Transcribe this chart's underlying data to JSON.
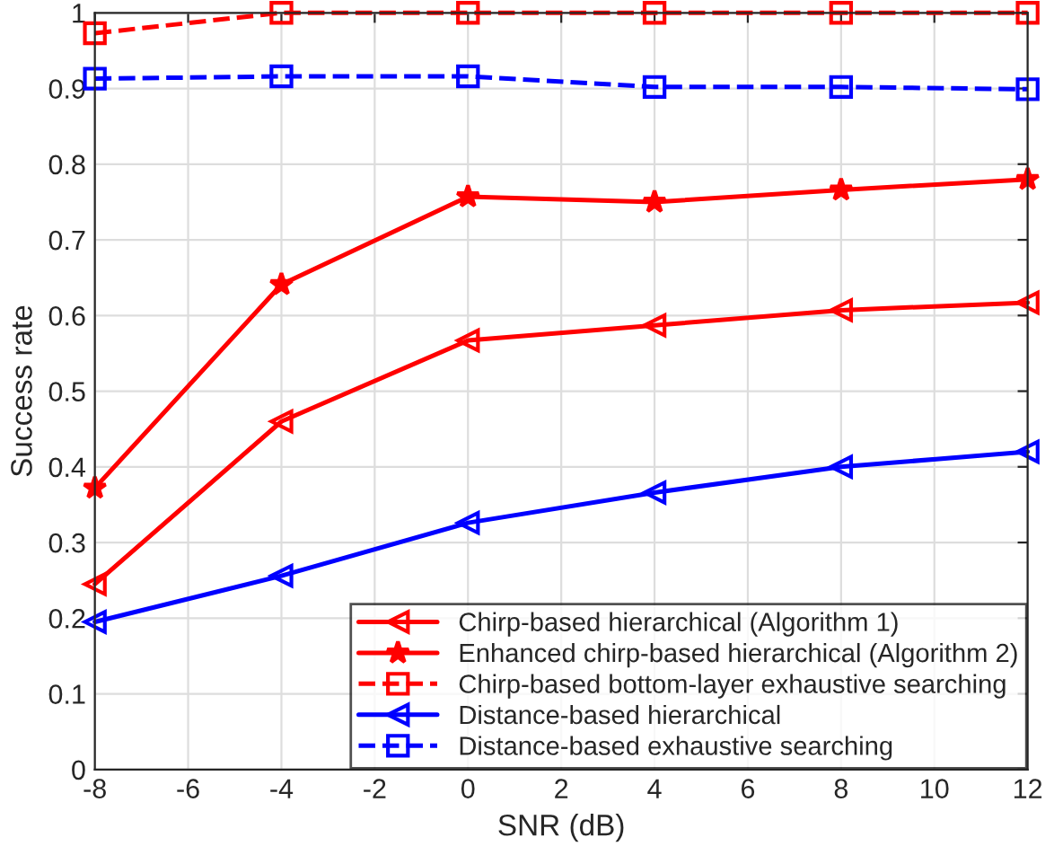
{
  "chart_data": {
    "type": "line",
    "xlabel": "SNR (dB)",
    "ylabel": "Success rate",
    "x": [
      -8,
      -4,
      0,
      4,
      8,
      12
    ],
    "series": [
      {
        "name": "Chirp-based hierarchical (Algorithm 1)",
        "color": "#ff0000",
        "marker": "triangle",
        "line_style": "solid",
        "values": [
          0.245,
          0.46,
          0.567,
          0.587,
          0.607,
          0.617
        ]
      },
      {
        "name": "Enhanced chirp-based hierarchical (Algorithm 2)",
        "color": "#ff0000",
        "marker": "star",
        "line_style": "solid",
        "values": [
          0.372,
          0.641,
          0.757,
          0.75,
          0.766,
          0.78
        ]
      },
      {
        "name": "Chirp-based bottom-layer exhaustive searching",
        "color": "#ff0000",
        "marker": "square",
        "line_style": "dashed",
        "values": [
          0.973,
          1,
          1,
          1,
          1,
          1
        ]
      },
      {
        "name": "Distance-based hierarchical",
        "color": "#0000ff",
        "marker": "triangle",
        "line_style": "solid",
        "values": [
          0.195,
          0.256,
          0.326,
          0.366,
          0.4,
          0.42
        ]
      },
      {
        "name": "Distance-based exhaustive searching",
        "color": "#0000ff",
        "marker": "square",
        "line_style": "dashed",
        "values": [
          0.913,
          0.916,
          0.916,
          0.902,
          0.902,
          0.899
        ]
      }
    ],
    "xlim": [
      -8,
      12
    ],
    "xticks": [
      -8,
      -6,
      -4,
      -2,
      0,
      2,
      4,
      6,
      8,
      10,
      12
    ],
    "ylim": [
      0,
      1
    ],
    "yticks": [
      0,
      0.1,
      0.2,
      0.3,
      0.4,
      0.5,
      0.6,
      0.7,
      0.8,
      0.9,
      1
    ],
    "grid": true,
    "legend": "bottom right"
  }
}
